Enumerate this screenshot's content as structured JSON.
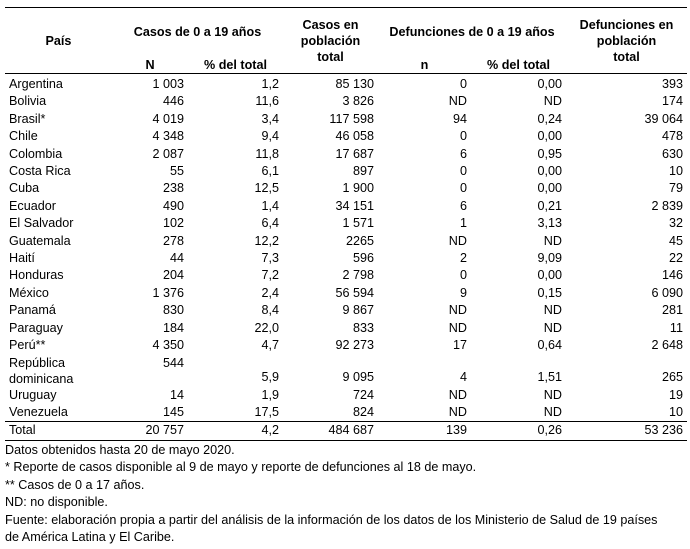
{
  "header": {
    "country": "País",
    "cases_group": "Casos de 0 a 19 años",
    "cases_total": [
      "Casos en",
      "población",
      "total"
    ],
    "deaths_group": "Defunciones de 0 a 19 años",
    "deaths_total": [
      "Defunciones en",
      "población",
      "total"
    ],
    "sub_N": "N",
    "sub_pct1": "% del total",
    "sub_n": "n",
    "sub_pct2": "% del total"
  },
  "rows": [
    {
      "country": "Argentina",
      "N": "1 003",
      "pct": "1,2",
      "total": "85 130",
      "n": "0",
      "dpct": "0,00",
      "dtotal": "393"
    },
    {
      "country": "Bolivia",
      "N": "446",
      "pct": "11,6",
      "total": "3 826",
      "n": "ND",
      "dpct": "ND",
      "dtotal": "174"
    },
    {
      "country": "Brasil*",
      "N": "4 019",
      "pct": "3,4",
      "total": "117 598",
      "n": "94",
      "dpct": "0,24",
      "dtotal": "39 064"
    },
    {
      "country": "Chile",
      "N": "4 348",
      "pct": "9,4",
      "total": "46 058",
      "n": "0",
      "dpct": "0,00",
      "dtotal": "478"
    },
    {
      "country": "Colombia",
      "N": "2 087",
      "pct": "11,8",
      "total": "17 687",
      "n": "6",
      "dpct": "0,95",
      "dtotal": "630"
    },
    {
      "country": "Costa Rica",
      "N": "55",
      "pct": "6,1",
      "total": "897",
      "n": "0",
      "dpct": "0,00",
      "dtotal": "10"
    },
    {
      "country": "Cuba",
      "N": "238",
      "pct": "12,5",
      "total": "1 900",
      "n": "0",
      "dpct": "0,00",
      "dtotal": "79"
    },
    {
      "country": "Ecuador",
      "N": "490",
      "pct": "1,4",
      "total": "34 151",
      "n": "6",
      "dpct": "0,21",
      "dtotal": "2 839"
    },
    {
      "country": "El Salvador",
      "N": "102",
      "pct": "6,4",
      "total": "1 571",
      "n": "1",
      "dpct": "3,13",
      "dtotal": "32"
    },
    {
      "country": "Guatemala",
      "N": "278",
      "pct": "12,2",
      "total": "2265",
      "n": "ND",
      "dpct": "ND",
      "dtotal": "45"
    },
    {
      "country": "Haití",
      "N": "44",
      "pct": "7,3",
      "total": "596",
      "n": "2",
      "dpct": "9,09",
      "dtotal": "22"
    },
    {
      "country": "Honduras",
      "N": "204",
      "pct": "7,2",
      "total": "2 798",
      "n": "0",
      "dpct": "0,00",
      "dtotal": "146"
    },
    {
      "country": "México",
      "N": "1 376",
      "pct": "2,4",
      "total": "56 594",
      "n": "9",
      "dpct": "0,15",
      "dtotal": "6 090"
    },
    {
      "country": "Panamá",
      "N": "830",
      "pct": "8,4",
      "total": "9 867",
      "n": "ND",
      "dpct": "ND",
      "dtotal": "281"
    },
    {
      "country": "Paraguay",
      "N": "184",
      "pct": "22,0",
      "total": "833",
      "n": "ND",
      "dpct": "ND",
      "dtotal": "11"
    },
    {
      "country": "Perú**",
      "N": "4 350",
      "pct": "4,7",
      "total": "92 273",
      "n": "17",
      "dpct": "0,64",
      "dtotal": "2 648"
    },
    {
      "country": "República dominicana",
      "N": "544",
      "pct": "5,9",
      "total": "9 095",
      "n": "4",
      "dpct": "1,51",
      "dtotal": "265"
    },
    {
      "country": "Uruguay",
      "N": "14",
      "pct": "1,9",
      "total": "724",
      "n": "ND",
      "dpct": "ND",
      "dtotal": "19"
    },
    {
      "country": "Venezuela",
      "N": "145",
      "pct": "17,5",
      "total": "824",
      "n": "ND",
      "dpct": "ND",
      "dtotal": "10"
    }
  ],
  "total": {
    "country": "Total",
    "N": "20 757",
    "pct": "4,2",
    "total": "484 687",
    "n": "139",
    "dpct": "0,26",
    "dtotal": "53 236"
  },
  "notes": [
    "Datos obtenidos hasta 20 de mayo 2020.",
    "* Reporte de casos disponible al 9 de mayo y reporte de defunciones al 18 de mayo.",
    "** Casos de 0 a 17 años.",
    "ND: no disponible.",
    "Fuente: elaboración propia a partir del análisis de la información de los datos de los Ministerio de Salud de 19 países",
    "de América Latina y El Caribe."
  ]
}
